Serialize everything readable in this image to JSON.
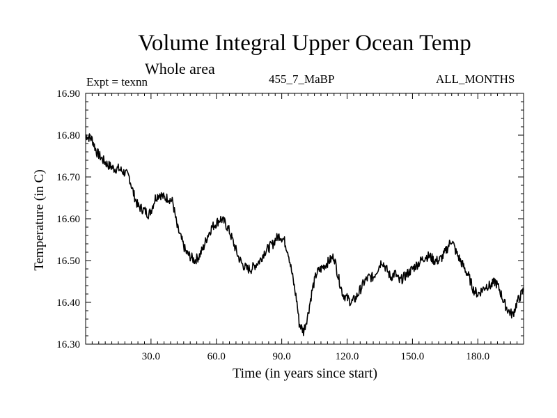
{
  "chart_data": {
    "type": "line",
    "title": "Volume Integral Upper Ocean Temp",
    "subtitle": "Whole area",
    "annotations": {
      "experiment": "Expt = texnn",
      "run": "455_7_MaBP",
      "months": "ALL_MONTHS"
    },
    "xlabel": "Time (in years since start)",
    "ylabel": "Temperature (in C)",
    "xlim": [
      0,
      201
    ],
    "ylim": [
      16.3,
      16.9
    ],
    "xticks": [
      30,
      60,
      90,
      120,
      150,
      180
    ],
    "xtick_labels": [
      "30.0",
      "60.0",
      "90.0",
      "120.0",
      "150.0",
      "180.0"
    ],
    "yticks": [
      16.3,
      16.4,
      16.5,
      16.6,
      16.7,
      16.8,
      16.9
    ],
    "ytick_labels": [
      "16.30",
      "16.40",
      "16.50",
      "16.60",
      "16.70",
      "16.80",
      "16.90"
    ],
    "grid": false,
    "series": [
      {
        "name": "Temperature",
        "color": "#000000",
        "x": [
          0,
          3,
          5,
          8,
          10,
          13,
          15,
          18,
          20,
          22,
          24,
          27,
          29,
          30,
          32,
          34,
          36,
          38,
          40,
          42,
          44,
          46,
          48,
          50,
          52,
          54,
          56,
          58,
          60,
          62,
          64,
          66,
          68,
          70,
          72,
          74,
          76,
          78,
          80,
          82,
          84,
          86,
          87,
          89,
          91,
          93,
          95,
          97,
          98,
          100,
          102,
          104,
          106,
          108,
          110,
          112,
          114,
          116,
          118,
          120,
          122,
          124,
          126,
          128,
          130,
          132,
          134,
          136,
          138,
          140,
          142,
          144,
          146,
          148,
          150,
          152,
          154,
          156,
          158,
          160,
          162,
          164,
          166,
          168,
          170,
          172,
          174,
          176,
          178,
          180,
          182,
          184,
          186,
          188,
          190,
          192,
          194,
          196,
          198,
          201
        ],
        "values": [
          16.8,
          16.79,
          16.76,
          16.74,
          16.73,
          16.72,
          16.72,
          16.71,
          16.7,
          16.66,
          16.63,
          16.62,
          16.61,
          16.62,
          16.65,
          16.66,
          16.65,
          16.65,
          16.64,
          16.58,
          16.55,
          16.52,
          16.51,
          16.5,
          16.51,
          16.53,
          16.56,
          16.58,
          16.59,
          16.6,
          16.59,
          16.57,
          16.54,
          16.51,
          16.49,
          16.48,
          16.48,
          16.49,
          16.5,
          16.52,
          16.53,
          16.54,
          16.55,
          16.56,
          16.55,
          16.52,
          16.46,
          16.4,
          16.35,
          16.33,
          16.37,
          16.43,
          16.47,
          16.48,
          16.49,
          16.5,
          16.51,
          16.46,
          16.42,
          16.41,
          16.4,
          16.41,
          16.43,
          16.45,
          16.46,
          16.46,
          16.48,
          16.5,
          16.48,
          16.46,
          16.47,
          16.45,
          16.46,
          16.47,
          16.48,
          16.49,
          16.5,
          16.51,
          16.51,
          16.5,
          16.5,
          16.51,
          16.53,
          16.55,
          16.52,
          16.5,
          16.48,
          16.46,
          16.43,
          16.42,
          16.43,
          16.44,
          16.44,
          16.45,
          16.43,
          16.4,
          16.38,
          16.37,
          16.4,
          16.43
        ]
      }
    ]
  }
}
